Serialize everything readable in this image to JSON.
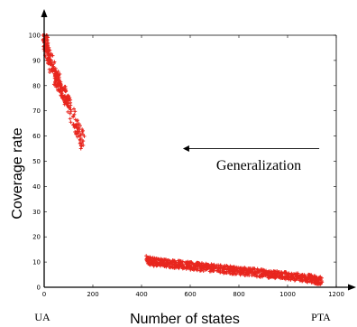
{
  "chart_data": {
    "type": "scatter",
    "title": "",
    "xlabel": "Number of states",
    "ylabel": "Coverage rate",
    "xlim": [
      0,
      1200
    ],
    "ylim": [
      0,
      100
    ],
    "x_ticks": [
      "0",
      "200",
      "400",
      "600",
      "800",
      "1000",
      "1200"
    ],
    "y_ticks": [
      "0",
      "10",
      "20",
      "30",
      "40",
      "50",
      "60",
      "70",
      "80",
      "90",
      "100"
    ],
    "grid": false,
    "legend": "none",
    "marker": "+",
    "point_color": "#e8261e",
    "axis_arrows": true,
    "left_label": "UA",
    "right_label": "PTA",
    "annotation": {
      "text": "Generalization",
      "arrow": {
        "from": [
          1130,
          55
        ],
        "to": [
          570,
          55
        ]
      }
    },
    "clusters": [
      {
        "name": "",
        "x": [
          0,
          5,
          10,
          18,
          25,
          35,
          45,
          55,
          65,
          75,
          85,
          100,
          120,
          140,
          160
        ],
        "y": [
          100,
          98,
          95,
          92,
          90,
          87,
          84,
          82,
          80,
          78,
          76,
          73,
          68,
          62,
          58
        ]
      },
      {
        "name": "",
        "x": [
          420,
          450,
          500,
          550,
          600,
          650,
          700,
          750,
          800,
          850,
          900,
          950,
          1000,
          1050,
          1100,
          1140
        ],
        "y": [
          11,
          10,
          9.5,
          9,
          8.5,
          8,
          7.5,
          7,
          6.5,
          6,
          5.5,
          5,
          4.5,
          4,
          3.2,
          2.5
        ]
      }
    ]
  }
}
